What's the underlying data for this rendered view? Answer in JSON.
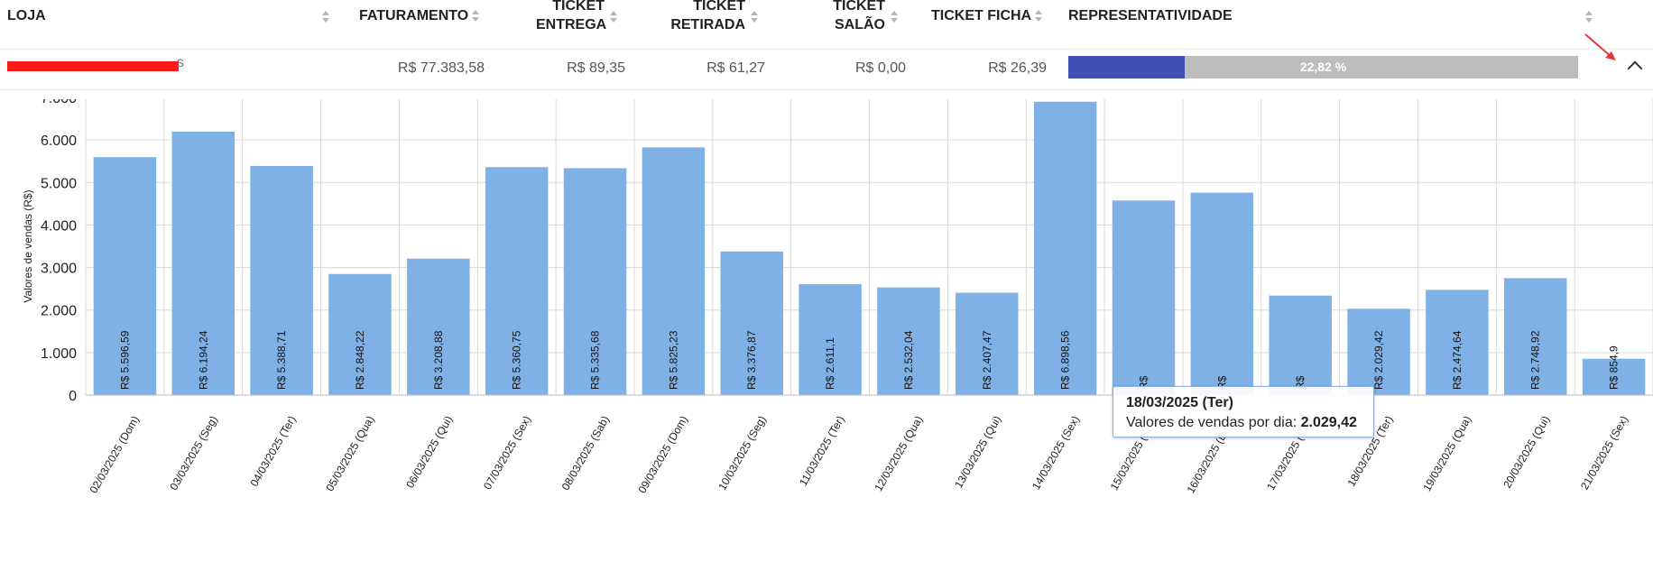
{
  "table": {
    "headers": {
      "loja": "LOJA",
      "faturamento": "FATURAMENTO",
      "ticket_entrega": [
        "TICKET",
        "ENTREGA"
      ],
      "ticket_retirada": [
        "TICKET",
        "RETIRADA"
      ],
      "ticket_salao": [
        "TICKET",
        "SALÃO"
      ],
      "ticket_ficha": "TICKET FICHA",
      "representatividade": "REPRESENTATIVIDADE"
    },
    "row": {
      "loja_tail": "s",
      "faturamento": "R$ 77.383,58",
      "ticket_entrega": "R$ 89,35",
      "ticket_retirada": "R$ 61,27",
      "ticket_salao": "R$ 0,00",
      "ticket_ficha": "R$ 26,39",
      "representatividade_label": "22,82 %",
      "representatividade_value": 22.82
    }
  },
  "colors": {
    "bar": "#80b1e6",
    "progress_fill": "#3f51b5",
    "progress_track": "#bdbdbd",
    "annotation": "#e53935"
  },
  "icons": {
    "sort": "sort-arrows-icon",
    "collapse": "chevron-up-icon",
    "annotation": "red-arrow-icon"
  },
  "tooltip": {
    "date": "18/03/2025 (Ter)",
    "label": "Valores de vendas por dia:",
    "value": "2.029,42"
  },
  "chart_data": {
    "type": "bar",
    "ylabel": "Valores de vendas (R$)",
    "ylim": [
      0,
      7000
    ],
    "yticks": [
      "0",
      "1.000",
      "2.000",
      "3.000",
      "4.000",
      "5.000",
      "6.000",
      "7.000"
    ],
    "grid": true,
    "categories": [
      "02/03/2025 (Dom)",
      "03/03/2025 (Seg)",
      "04/03/2025 (Ter)",
      "05/03/2025 (Qua)",
      "06/03/2025 (Qui)",
      "07/03/2025 (Sex)",
      "08/03/2025 (Sab)",
      "09/03/2025 (Dom)",
      "10/03/2025 (Seg)",
      "11/03/2025 (Ter)",
      "12/03/2025 (Qua)",
      "13/03/2025 (Qui)",
      "14/03/2025 (Sex)",
      "15/03/2025 (Sab)",
      "16/03/2025 (Dom)",
      "17/03/2025 (Seg)",
      "18/03/2025 (Ter)",
      "19/03/2025 (Qua)",
      "20/03/2025 (Qui)",
      "21/03/2025 (Sex)"
    ],
    "values": [
      5596.59,
      6194.24,
      5388.71,
      2848.22,
      3208.88,
      5360.75,
      5335.68,
      5825.23,
      3376.87,
      2611.1,
      2532.04,
      2407.47,
      6898.56,
      4575.0,
      4760.0,
      2340.0,
      2029.42,
      2474.64,
      2748.92,
      854.9
    ],
    "value_labels": [
      "R$ 5.596,59",
      "R$ 6.194,24",
      "R$ 5.388,71",
      "R$ 2.848,22",
      "R$ 3.208,88",
      "R$ 5.360,75",
      "R$ 5.335,68",
      "R$ 5.825,23",
      "R$ 3.376,87",
      "R$ 2.611,1",
      "R$ 2.532,04",
      "R$ 2.407,47",
      "R$ 6.898,56",
      "R$",
      "R$",
      "R$",
      "R$ 2.029,42",
      "R$ 2.474,64",
      "R$ 2.748,92",
      "R$ 854,9"
    ]
  }
}
